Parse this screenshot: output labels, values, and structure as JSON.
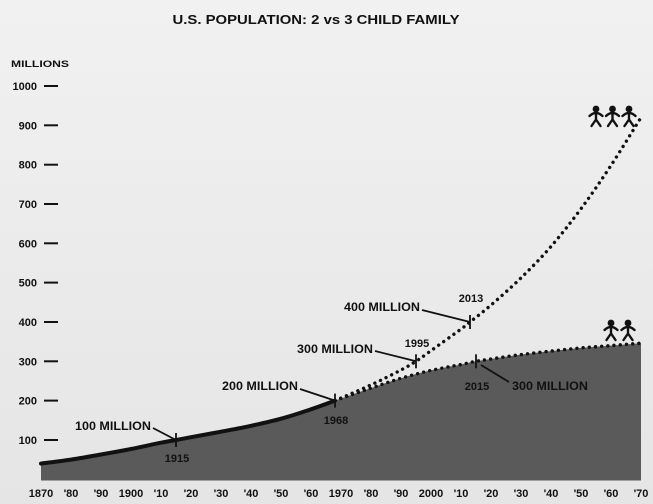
{
  "chart_data": {
    "type": "area",
    "title": "U.S. POPULATION: 2 vs 3 CHILD FAMILY",
    "ylabel": "MILLIONS",
    "xlabel": "",
    "xlim": [
      1870,
      2070
    ],
    "ylim": [
      0,
      1000
    ],
    "grid": false,
    "yticks": [
      100,
      200,
      300,
      400,
      500,
      600,
      700,
      800,
      900,
      1000
    ],
    "xticks": [
      1870,
      1880,
      1890,
      1900,
      1910,
      1920,
      1930,
      1940,
      1950,
      1960,
      1970,
      1980,
      1990,
      2000,
      2010,
      2020,
      2030,
      2040,
      2050,
      2060,
      2070
    ],
    "xtick_labels": [
      "1870",
      "'80",
      "'90",
      "1900",
      "'10",
      "'20",
      "'30",
      "'40",
      "'50",
      "'60",
      "1970",
      "'80",
      "'90",
      "2000",
      "'10",
      "'20",
      "'30",
      "'40",
      "'50",
      "'60",
      "'70"
    ],
    "series": [
      {
        "dotted": false,
        "filled": true,
        "x": [
          1870,
          1880,
          1890,
          1900,
          1910,
          1915,
          1920,
          1930,
          1940,
          1950,
          1960,
          1968
        ],
        "y": [
          40,
          50,
          63,
          77,
          93,
          100,
          107,
          121,
          136,
          154,
          178,
          200
        ]
      },
      {
        "dotted": true,
        "filled": false,
        "icon": "person-icon",
        "icon_count": 3,
        "x": [
          1968,
          1980,
          1990,
          1995,
          2000,
          2010,
          2013,
          2020,
          2030,
          2040,
          2050,
          2060,
          2070
        ],
        "y": [
          200,
          240,
          278,
          300,
          327,
          382,
          400,
          443,
          512,
          592,
          688,
          798,
          920
        ]
      },
      {
        "dotted": true,
        "filled": true,
        "icon": "person-icon",
        "icon_count": 2,
        "x": [
          1968,
          1980,
          1990,
          2000,
          2010,
          2015,
          2020,
          2030,
          2040,
          2050,
          2060,
          2070
        ],
        "y": [
          200,
          232,
          257,
          277,
          292,
          300,
          306,
          317,
          326,
          334,
          340,
          346
        ]
      }
    ],
    "annotations": [
      {
        "text": "100 MILLION",
        "year": "1915",
        "x": 1915,
        "y": 100
      },
      {
        "text": "200 MILLION",
        "year": "1968",
        "x": 1968,
        "y": 200
      },
      {
        "text": "300 MILLION",
        "year": "1995",
        "x": 1995,
        "y": 300
      },
      {
        "text": "400 MILLION",
        "year": "2013",
        "x": 2013,
        "y": 400
      },
      {
        "text": "300 MILLION",
        "year": "2015",
        "x": 2015,
        "y": 300
      }
    ]
  },
  "colors": {
    "area_fill": "#5a5a5a",
    "line": "#111111"
  }
}
